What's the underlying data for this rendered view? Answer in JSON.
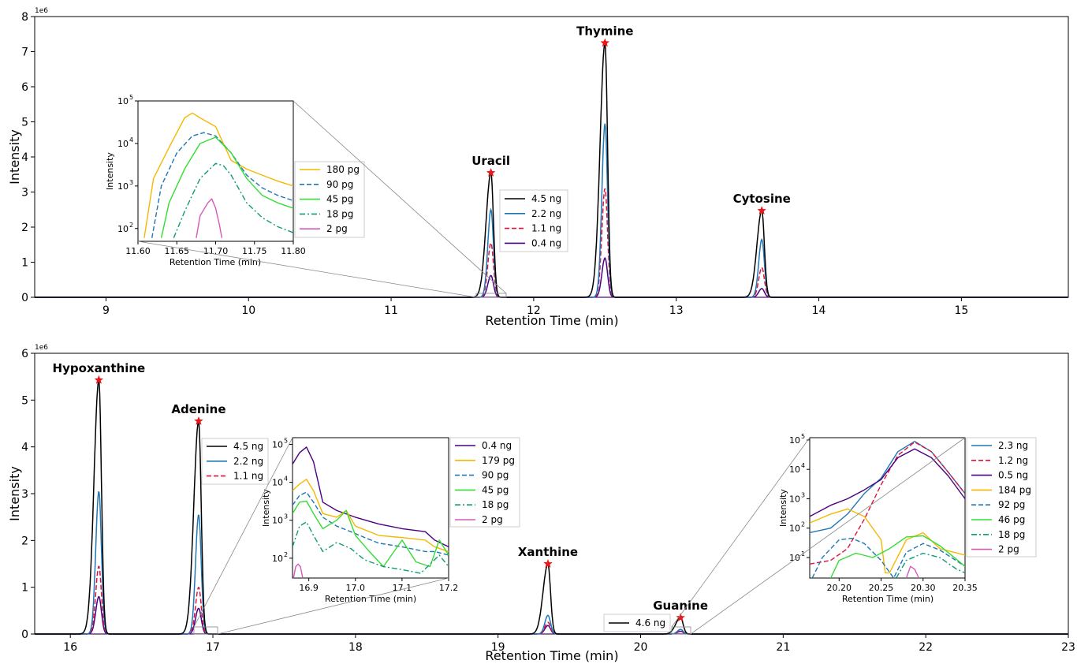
{
  "chart_data": [
    {
      "type": "line",
      "id": "top",
      "xlabel": "Retention Time (min)",
      "ylabel": "Intensity",
      "scale_label": "1e6",
      "xlim": [
        8.5,
        15.75
      ],
      "ylim": [
        0,
        8
      ],
      "xticks": [
        "9",
        "10",
        "11",
        "12",
        "13",
        "14",
        "15"
      ],
      "yticks": [
        "0",
        "1",
        "2",
        "3",
        "4",
        "5",
        "6",
        "7",
        "8"
      ],
      "grid": false,
      "legend": {
        "placement": "center",
        "entries": [
          "4.5 ng",
          "2.2 ng",
          "1.1 ng",
          "0.4 ng"
        ]
      },
      "peaks": [
        {
          "name": "Uracil",
          "x": 11.7,
          "y": 3.55
        },
        {
          "name": "Thymine",
          "x": 12.5,
          "y": 7.25
        },
        {
          "name": "Cytosine",
          "x": 13.6,
          "y": 2.47
        }
      ],
      "series": [
        {
          "name": "4.5 ng",
          "color": "#000000",
          "dash": "solid",
          "heights": [
            3.55,
            7.25,
            2.47
          ]
        },
        {
          "name": "2.2 ng",
          "color": "#1f77b4",
          "dash": "solid",
          "heights": [
            2.5,
            4.95,
            1.65
          ]
        },
        {
          "name": "1.1 ng",
          "color": "#dc143c",
          "dash": "dashed",
          "heights": [
            1.55,
            3.1,
            0.85
          ]
        },
        {
          "name": "0.4 ng",
          "color": "#4b0082",
          "dash": "solid",
          "heights": [
            0.62,
            1.12,
            0.25
          ]
        }
      ],
      "inset": {
        "xlabel": "Retention Time (min)",
        "ylabel": "Intensity",
        "xlim": [
          11.6,
          11.8
        ],
        "ylim_log": [
          50,
          100000
        ],
        "xticks": [
          "11.60",
          "11.65",
          "11.70",
          "11.75",
          "11.80"
        ],
        "yticks": [
          "10",
          "10",
          "10",
          "10"
        ],
        "ytick_exps": [
          "2",
          "3",
          "4",
          "5"
        ],
        "legend": [
          "180 pg",
          "90 pg",
          "45 pg",
          "18 pg",
          "2 pg"
        ],
        "series": [
          {
            "name": "180 pg",
            "color": "#f5b800",
            "dash": "solid",
            "x": [
              11.608,
              11.62,
              11.64,
              11.66,
              11.67,
              11.68,
              11.7,
              11.72,
              11.74,
              11.76,
              11.78,
              11.8
            ],
            "y": [
              60,
              1500,
              8000,
              40000,
              52000,
              40000,
              25000,
              4000,
              2500,
              1800,
              1300,
              1000
            ]
          },
          {
            "name": "90 pg",
            "color": "#1f77b4",
            "dash": "dashed",
            "x": [
              11.618,
              11.63,
              11.65,
              11.67,
              11.685,
              11.7,
              11.72,
              11.74,
              11.76,
              11.78,
              11.8
            ],
            "y": [
              60,
              1000,
              6000,
              15000,
              18000,
              15000,
              6000,
              1800,
              900,
              600,
              450
            ]
          },
          {
            "name": "45 pg",
            "color": "#33dd33",
            "dash": "solid",
            "x": [
              11.63,
              11.64,
              11.66,
              11.68,
              11.7,
              11.72,
              11.74,
              11.76,
              11.78,
              11.8
            ],
            "y": [
              60,
              400,
              2500,
              10000,
              14000,
              6000,
              1500,
              600,
              400,
              300
            ]
          },
          {
            "name": "18 pg",
            "color": "#11997a",
            "dash": "dashdot",
            "x": [
              11.646,
              11.66,
              11.68,
              11.7,
              11.71,
              11.72,
              11.74,
              11.76,
              11.78,
              11.8
            ],
            "y": [
              60,
              250,
              1500,
              3400,
              3000,
              1800,
              400,
              180,
              110,
              80
            ]
          },
          {
            "name": "2 pg",
            "color": "#d45ab8",
            "dash": "solid",
            "x": [
              11.675,
              11.68,
              11.69,
              11.695,
              11.7,
              11.705,
              11.708
            ],
            "y": [
              60,
              200,
              400,
              500,
              300,
              120,
              60
            ]
          }
        ]
      }
    },
    {
      "type": "line",
      "id": "bottom",
      "xlabel": "Retention Time (min)",
      "ylabel": "Intensity",
      "scale_label": "1e6",
      "xlim": [
        15.75,
        23.0
      ],
      "ylim": [
        0,
        6
      ],
      "xticks": [
        "16",
        "17",
        "18",
        "19",
        "20",
        "21",
        "22",
        "23"
      ],
      "yticks": [
        "0",
        "1",
        "2",
        "3",
        "4",
        "5",
        "6"
      ],
      "grid": false,
      "legend": {
        "placement": "left",
        "entries": [
          "4.5 ng",
          "2.2 ng",
          "1.1 ng"
        ]
      },
      "legend_guanine": {
        "entries": [
          "4.6 ng"
        ]
      },
      "peaks": [
        {
          "name": "Hypoxanthine",
          "x": 16.2,
          "y": 5.43
        },
        {
          "name": "Adenine",
          "x": 16.9,
          "y": 4.55
        },
        {
          "name": "Xanthine",
          "x": 19.35,
          "y": 1.5
        },
        {
          "name": "Guanine",
          "x": 20.28,
          "y": 0.35
        }
      ],
      "series": [
        {
          "name": "4.5 ng",
          "color": "#000000",
          "dash": "solid",
          "heights": [
            5.43,
            4.55,
            1.5,
            0.35
          ]
        },
        {
          "name": "2.2 ng",
          "color": "#1f77b4",
          "dash": "solid",
          "heights": [
            3.05,
            2.55,
            0.4,
            0.1
          ]
        },
        {
          "name": "1.1 ng",
          "color": "#dc143c",
          "dash": "dashed",
          "heights": [
            1.45,
            1.0,
            0.25,
            0.08
          ]
        },
        {
          "name": "0.5 ng",
          "color": "#4b0082",
          "dash": "solid",
          "heights": [
            0.8,
            0.55,
            0.18,
            0.06
          ]
        }
      ],
      "inset_adenine": {
        "xlabel": "Retention Time (min)",
        "ylabel": "Intensity",
        "xlim": [
          16.865,
          17.2
        ],
        "ylim_log": [
          30,
          150000
        ],
        "xticks": [
          "16.9",
          "17.0",
          "17.1",
          "17.2"
        ],
        "yticks": [
          "10",
          "10",
          "10",
          "10"
        ],
        "ytick_exps": [
          "2",
          "3",
          "4",
          "5"
        ],
        "legend": [
          "0.4 ng",
          "179 pg",
          "90 pg",
          "45 pg",
          "18 pg",
          "2 pg"
        ],
        "series": [
          {
            "name": "0.4 ng",
            "color": "#4b0082",
            "dash": "solid",
            "x": [
              16.865,
              16.88,
              16.895,
              16.91,
              16.93,
              16.96,
              17.0,
              17.05,
              17.1,
              17.15,
              17.17,
              17.2
            ],
            "y": [
              30000,
              60000,
              85000,
              35000,
              3000,
              1800,
              1200,
              800,
              600,
              500,
              300,
              200
            ]
          },
          {
            "name": "179 pg",
            "color": "#f5b800",
            "dash": "solid",
            "x": [
              16.865,
              16.88,
              16.895,
              16.91,
              16.93,
              16.96,
              16.98,
              17.0,
              17.05,
              17.1,
              17.15,
              17.17,
              17.2
            ],
            "y": [
              6000,
              9000,
              12000,
              6000,
              1500,
              1200,
              1800,
              700,
              400,
              350,
              300,
              200,
              150
            ]
          },
          {
            "name": "90 pg",
            "color": "#1f77b4",
            "dash": "dashed",
            "x": [
              16.865,
              16.88,
              16.895,
              16.91,
              16.93,
              16.96,
              16.99,
              17.02,
              17.05,
              17.1,
              17.15,
              17.17,
              17.2
            ],
            "y": [
              2500,
              4500,
              5500,
              3000,
              1200,
              700,
              500,
              350,
              250,
              200,
              150,
              150,
              120
            ]
          },
          {
            "name": "45 pg",
            "color": "#33dd33",
            "dash": "solid",
            "x": [
              16.865,
              16.88,
              16.895,
              16.91,
              16.93,
              16.96,
              16.98,
              17.0,
              17.03,
              17.06,
              17.1,
              17.13,
              17.16,
              17.18,
              17.2
            ],
            "y": [
              1500,
              3000,
              3200,
              1500,
              600,
              1000,
              1800,
              400,
              150,
              60,
              300,
              80,
              60,
              300,
              120
            ]
          },
          {
            "name": "18 pg",
            "color": "#11997a",
            "dash": "dashdot",
            "x": [
              16.865,
              16.88,
              16.895,
              16.91,
              16.93,
              16.96,
              16.99,
              17.02,
              17.06,
              17.1,
              17.14,
              17.18,
              17.2
            ],
            "y": [
              200,
              700,
              900,
              400,
              150,
              260,
              180,
              90,
              60,
              50,
              40,
              120,
              60
            ]
          },
          {
            "name": "2 pg",
            "color": "#d45ab8",
            "dash": "solid",
            "x": [
              16.867,
              16.872,
              16.877,
              16.882,
              16.887
            ],
            "y": [
              30,
              60,
              70,
              60,
              30
            ]
          }
        ]
      },
      "inset_guanine": {
        "xlabel": "Retention Time (min)",
        "ylabel": "Intensity",
        "xlim": [
          20.165,
          20.35
        ],
        "ylim_log": [
          2,
          120000
        ],
        "xticks": [
          "20.20",
          "20.25",
          "20.30",
          "20.35"
        ],
        "yticks": [
          "10",
          "10",
          "10",
          "10",
          "10"
        ],
        "ytick_exps": [
          "1",
          "2",
          "3",
          "4",
          "5"
        ],
        "legend": [
          "2.3 ng",
          "1.2 ng",
          "0.5 ng",
          "184 pg",
          "92 pg",
          "46 pg",
          "18 pg",
          "2 pg"
        ],
        "series": [
          {
            "name": "2.3 ng",
            "color": "#1f77b4",
            "dash": "solid",
            "x": [
              20.165,
              20.19,
              20.21,
              20.23,
              20.25,
              20.27,
              20.29,
              20.31,
              20.33,
              20.35
            ],
            "y": [
              70,
              100,
              300,
              1500,
              5000,
              40000,
              90000,
              40000,
              8000,
              1500
            ]
          },
          {
            "name": "1.2 ng",
            "color": "#dc143c",
            "dash": "dashed",
            "x": [
              20.165,
              20.19,
              20.21,
              20.23,
              20.25,
              20.27,
              20.29,
              20.31,
              20.33,
              20.35
            ],
            "y": [
              6,
              8,
              20,
              200,
              3000,
              30000,
              85000,
              40000,
              8000,
              1500
            ]
          },
          {
            "name": "0.5 ng",
            "color": "#4b0082",
            "dash": "solid",
            "x": [
              20.165,
              20.19,
              20.21,
              20.23,
              20.25,
              20.27,
              20.29,
              20.31,
              20.33,
              20.35
            ],
            "y": [
              250,
              600,
              1000,
              2000,
              4500,
              25000,
              50000,
              25000,
              6000,
              1000
            ]
          },
          {
            "name": "184 pg",
            "color": "#f5b800",
            "dash": "solid",
            "x": [
              20.165,
              20.19,
              20.21,
              20.23,
              20.25,
              20.255,
              20.26,
              20.28,
              20.3,
              20.32,
              20.35
            ],
            "y": [
              150,
              300,
              450,
              250,
              40,
              3,
              3,
              40,
              70,
              20,
              12
            ]
          },
          {
            "name": "92 pg",
            "color": "#1f77b4",
            "dash": "dashed",
            "x": [
              20.168,
              20.18,
              20.2,
              20.215,
              20.23,
              20.25,
              20.265,
              20.28,
              20.3,
              20.32,
              20.35
            ],
            "y": [
              2,
              10,
              40,
              45,
              30,
              8,
              2,
              15,
              30,
              18,
              5
            ]
          },
          {
            "name": "46 pg",
            "color": "#33dd33",
            "dash": "solid",
            "x": [
              20.19,
              20.2,
              20.22,
              20.24,
              20.26,
              20.28,
              20.3,
              20.32,
              20.35
            ],
            "y": [
              2,
              8,
              14,
              10,
              20,
              50,
              55,
              25,
              5
            ]
          },
          {
            "name": "18 pg",
            "color": "#11997a",
            "dash": "dashdot",
            "x": [
              20.268,
              20.28,
              20.3,
              20.32,
              20.34,
              20.35
            ],
            "y": [
              2,
              8,
              14,
              10,
              4,
              3
            ]
          },
          {
            "name": "2 pg",
            "color": "#d45ab8",
            "dash": "solid",
            "x": [
              20.28,
              20.285,
              20.29,
              20.295
            ],
            "y": [
              2,
              5,
              4,
              2
            ]
          }
        ]
      }
    }
  ]
}
